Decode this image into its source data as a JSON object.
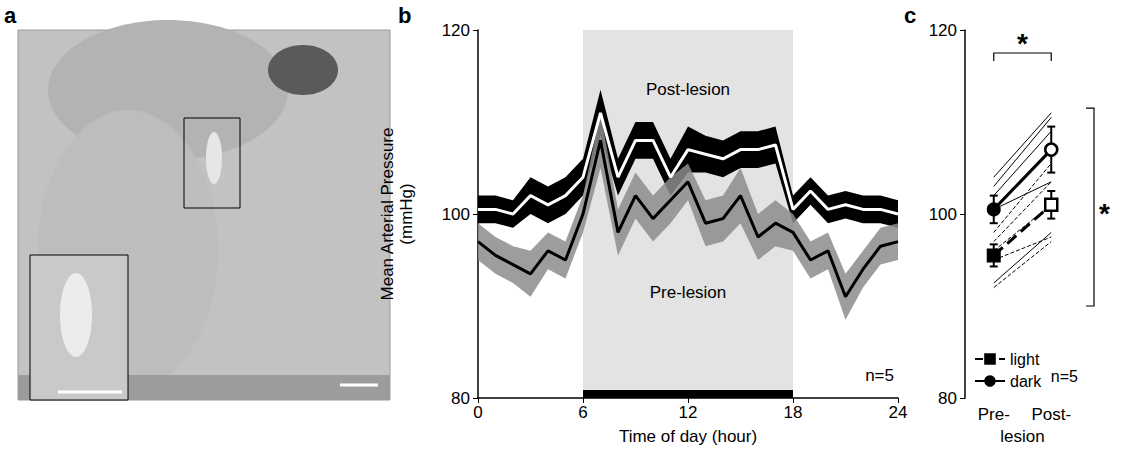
{
  "chart_data": [
    {
      "panel": "a",
      "type": "image"
    },
    {
      "panel": "b",
      "type": "line",
      "x_label": "Time of day (hour)",
      "y_label": "Mean Arterial Pressure (mmHg)",
      "x": [
        0,
        1,
        2,
        3,
        4,
        5,
        6,
        7,
        8,
        9,
        10,
        11,
        12,
        13,
        14,
        15,
        16,
        17,
        18,
        19,
        20,
        21,
        22,
        23,
        24
      ],
      "xlim": [
        0,
        24
      ],
      "xticks": [
        0,
        6,
        12,
        18,
        24
      ],
      "ylim": [
        80,
        120
      ],
      "yticks": [
        80,
        100,
        120
      ],
      "dark_period": [
        6,
        18
      ],
      "series": [
        {
          "name": "Post-lesion",
          "color": "#000000",
          "values": [
            100.5,
            100.5,
            100,
            102,
            101,
            102,
            104,
            111,
            104,
            108,
            108,
            104,
            107,
            106.5,
            106,
            107,
            107,
            107.5,
            100.5,
            102.5,
            100.5,
            101,
            100.5,
            100.5,
            100
          ],
          "errors": [
            1.5,
            1.5,
            1.5,
            2,
            2,
            2,
            2,
            2.5,
            2,
            2,
            2,
            2,
            2.5,
            2,
            2,
            2,
            2,
            2,
            1.5,
            1.5,
            1.5,
            1.5,
            1.5,
            1.5,
            1.5
          ]
        },
        {
          "name": "Pre-lesion",
          "color": "#8c8c8c",
          "values": [
            97,
            95.5,
            94.5,
            93.5,
            96,
            95,
            100,
            108,
            98,
            102,
            99.5,
            101.5,
            103.5,
            99,
            99.5,
            102,
            97.5,
            99,
            98,
            95,
            96,
            91,
            94,
            96.5,
            97
          ],
          "errors": [
            2,
            2,
            2,
            2.5,
            2,
            2,
            2,
            3,
            2.5,
            2.5,
            2.5,
            2.5,
            2,
            2.5,
            2.5,
            3,
            2.5,
            2.5,
            2,
            2,
            2,
            2.5,
            2,
            2,
            2
          ]
        }
      ],
      "annotations": [
        "n=5"
      ]
    },
    {
      "panel": "c",
      "type": "line",
      "categories": [
        "Pre-",
        "Post-"
      ],
      "x_label": "lesion",
      "ylim": [
        80,
        120
      ],
      "yticks": [
        80,
        100,
        120
      ],
      "legend": "bottom-left",
      "series": [
        {
          "name": "light",
          "color": "#000000",
          "marker": "square",
          "line_style": "dashed",
          "values": [
            95.5,
            101
          ],
          "errors": [
            1.2,
            1.5
          ],
          "individuals": [
            [
              98,
              105.5
            ],
            [
              97,
              103.5
            ],
            [
              96,
              101
            ],
            [
              95,
              97.5
            ],
            [
              92,
              97
            ]
          ]
        },
        {
          "name": "dark",
          "color": "#000000",
          "marker": "circle",
          "line_style": "solid",
          "values": [
            100.5,
            107
          ],
          "errors": [
            1.5,
            2.5
          ],
          "individuals": [
            [
              104,
              111
            ],
            [
              103,
              110.5
            ],
            [
              102,
              109
            ],
            [
              100.5,
              103.5
            ],
            [
              92.5,
              98
            ]
          ]
        }
      ],
      "annotations": [
        "*",
        "*",
        "n=5"
      ]
    }
  ]
}
